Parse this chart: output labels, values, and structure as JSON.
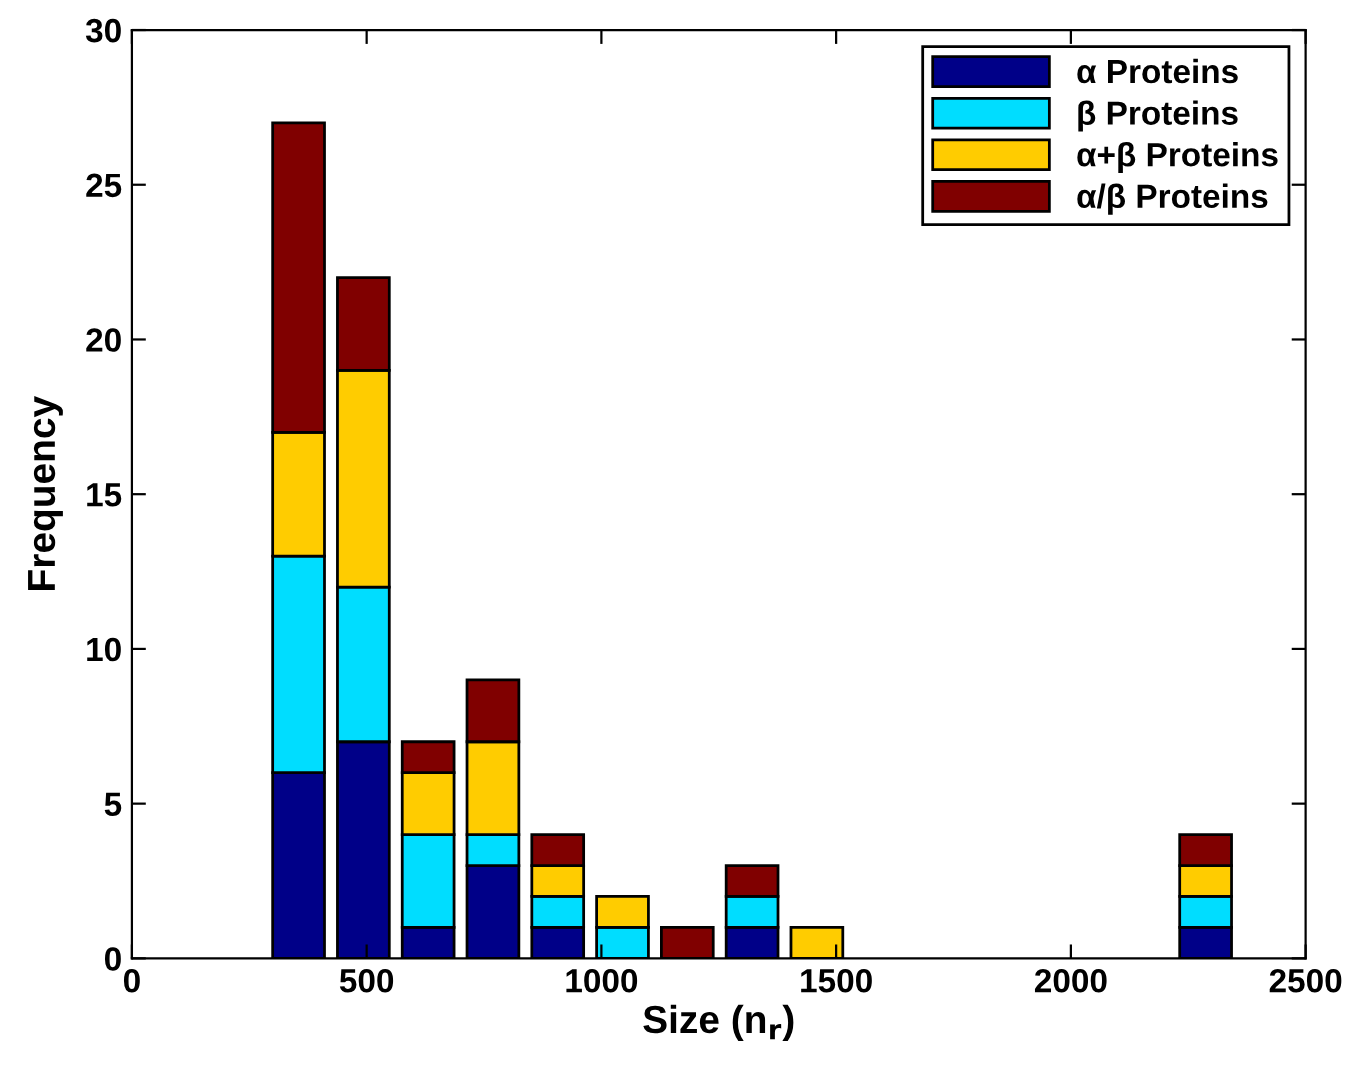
{
  "chart_data": {
    "type": "bar",
    "stacked": true,
    "xlabel": "Size (n$_{r}$)",
    "ylabel": "Frequency",
    "x": [
      355,
      493,
      631,
      769,
      907,
      1045,
      1183,
      1321,
      1459,
      2287
    ],
    "series": [
      {
        "name": "α Proteins",
        "color": "#000088",
        "values": [
          6,
          7,
          1,
          3,
          1,
          0,
          0,
          1,
          0,
          1
        ]
      },
      {
        "name": "β Proteins",
        "color": "#00ddff",
        "values": [
          7,
          5,
          3,
          1,
          1,
          1,
          0,
          1,
          0,
          1
        ]
      },
      {
        "name": "α+β Proteins",
        "color": "#ffcc00",
        "values": [
          4,
          7,
          2,
          3,
          1,
          1,
          0,
          0,
          1,
          1
        ]
      },
      {
        "name": "α/β Proteins",
        "color": "#800000",
        "values": [
          10,
          3,
          1,
          2,
          1,
          0,
          1,
          1,
          0,
          1
        ]
      }
    ],
    "xlim": [
      0,
      2500
    ],
    "xticks": [
      0,
      500,
      1000,
      1500,
      2000,
      2500
    ],
    "ylim": [
      0,
      30
    ],
    "yticks": [
      0,
      5,
      10,
      15,
      20,
      25,
      30
    ],
    "grid": false,
    "legend": "top right"
  }
}
